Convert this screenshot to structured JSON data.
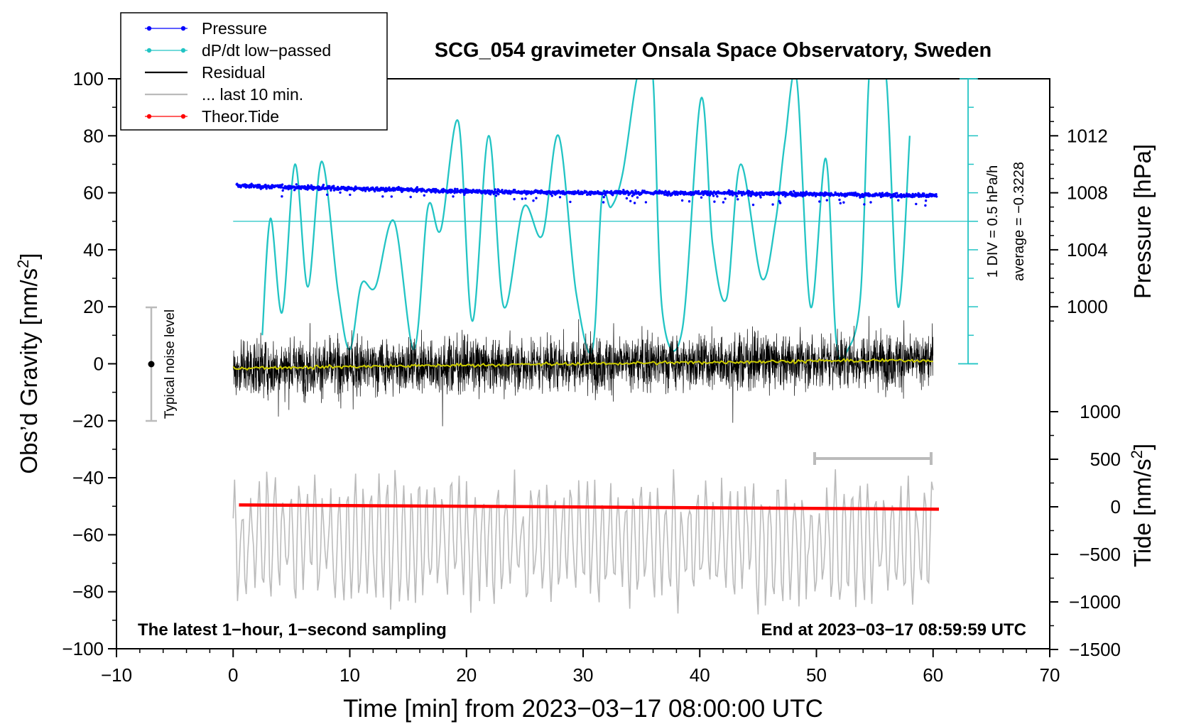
{
  "chart_data": {
    "type": "line",
    "title": "SCG_054 gravimeter Onsala Space Observatory, Sweden",
    "xlabel": "Time [min] from 2023−03−17 08:00:00 UTC",
    "ylabel_left": "Obs’d Gravity [nm/s",
    "ylabel_left_sup": "2",
    "ylabel_left_close": "]",
    "ylabel_right_pressure": "Pressure [hPa]",
    "ylabel_right_tide": "Tide [nm/s",
    "ylabel_right_tide_sup": "2",
    "ylabel_right_tide_close": "]",
    "xlim": [
      -10,
      70
    ],
    "ylim": [
      -100,
      100
    ],
    "x_ticks": [
      "−10",
      "0",
      "10",
      "20",
      "30",
      "40",
      "50",
      "60",
      "70"
    ],
    "y_ticks": [
      "100",
      "80",
      "60",
      "40",
      "20",
      "0",
      "−20",
      "−40",
      "−60",
      "−80",
      "−100"
    ],
    "pressure_ticks": [
      "1012",
      "1008",
      "1004",
      "1000"
    ],
    "pressure_tick_values": [
      1012,
      1008,
      1004,
      1000
    ],
    "tide_ticks": [
      "1000",
      "500",
      "0",
      "−500",
      "−1000",
      "−1500"
    ],
    "tide_tick_values": [
      1000,
      500,
      0,
      -500,
      -1000,
      -1500
    ],
    "legend": {
      "placement": "top-left",
      "entries": [
        {
          "label": "Pressure",
          "color": "#0000ff",
          "marker": "dot"
        },
        {
          "label": "dP/dt low−passed",
          "color": "#22c4c4",
          "marker": "dot"
        },
        {
          "label": "Residual",
          "color": "#000000",
          "marker": "none"
        },
        {
          "label": "... last 10 min.",
          "color": "#bbbbbb",
          "marker": "none"
        },
        {
          "label": "Theor.Tide",
          "color": "#ff0000",
          "marker": "dot"
        }
      ]
    },
    "annotations": {
      "noise_label": "Typical noise level",
      "noise_range": [
        -20,
        20
      ],
      "dpdt_scale": "1 DIV = 0.5 hPa/h",
      "dpdt_average": "average = −0.3228",
      "bottom_left": "The latest 1−hour, 1−second sampling",
      "bottom_right": "End at 2023−03−17 08:59:59 UTC",
      "last10_range_min": [
        50,
        60
      ]
    },
    "series": [
      {
        "name": "Pressure",
        "axis": "pressure_hPa",
        "color": "#0000ff",
        "x": [
          0,
          10,
          20,
          30,
          40,
          50,
          60
        ],
        "values": [
          1008.5,
          1008.3,
          1008.1,
          1008.0,
          1008.0,
          1007.9,
          1007.8
        ]
      },
      {
        "name": "dP/dt low−passed",
        "axis": "left_nm_s2",
        "color": "#22c4c4",
        "baseline": 50,
        "x": [
          2.5,
          3.2,
          4.2,
          5.3,
          6.4,
          7.6,
          9.0,
          10.0,
          11.0,
          12.2,
          13.8,
          15.5,
          16.7,
          17.8,
          19.3,
          20.5,
          21.9,
          23.2,
          24.9,
          26.5,
          27.9,
          29.4,
          30.8,
          31.6,
          32.4,
          33.4,
          34.6,
          35.3,
          36.0,
          36.8,
          38.5,
          40.1,
          41.1,
          42.3,
          43.5,
          45.3,
          46.5,
          47.3,
          48.3,
          49.5,
          50.8,
          51.7,
          52.7,
          53.8,
          54.5,
          55.1,
          56.0,
          57.0,
          58.0
        ],
        "values": [
          10,
          51,
          18,
          70,
          27,
          71,
          25,
          5,
          28,
          27,
          50,
          5,
          55,
          47,
          85,
          15,
          80,
          20,
          55,
          45,
          80,
          25,
          5,
          58,
          55,
          67,
          100,
          100,
          100,
          18,
          12,
          93,
          42,
          23,
          70,
          30,
          50,
          78,
          100,
          20,
          72,
          8,
          5,
          25,
          100,
          100,
          100,
          20,
          80
        ]
      },
      {
        "name": "Residual",
        "axis": "left_nm_s2",
        "color": "#000000",
        "x_range": [
          0,
          60
        ],
        "std_nm_s2": 8,
        "smoothed_color": "#cccc00",
        "smoothed_x": [
          0,
          10,
          20,
          30,
          40,
          50,
          60
        ],
        "smoothed_values": [
          -1.5,
          -1.0,
          -0.5,
          0.0,
          0.5,
          1.0,
          1.2
        ]
      },
      {
        "name": "... last 10 min.",
        "axis": "left_nm_s2",
        "color": "#bbbbbb",
        "x_range": [
          0,
          60
        ],
        "center": -62,
        "amplitude": 18
      },
      {
        "name": "Theor.Tide",
        "axis": "tide_nm_s2",
        "color": "#ff0000",
        "x": [
          0.5,
          60.5
        ],
        "values": [
          20,
          -25
        ]
      }
    ]
  }
}
